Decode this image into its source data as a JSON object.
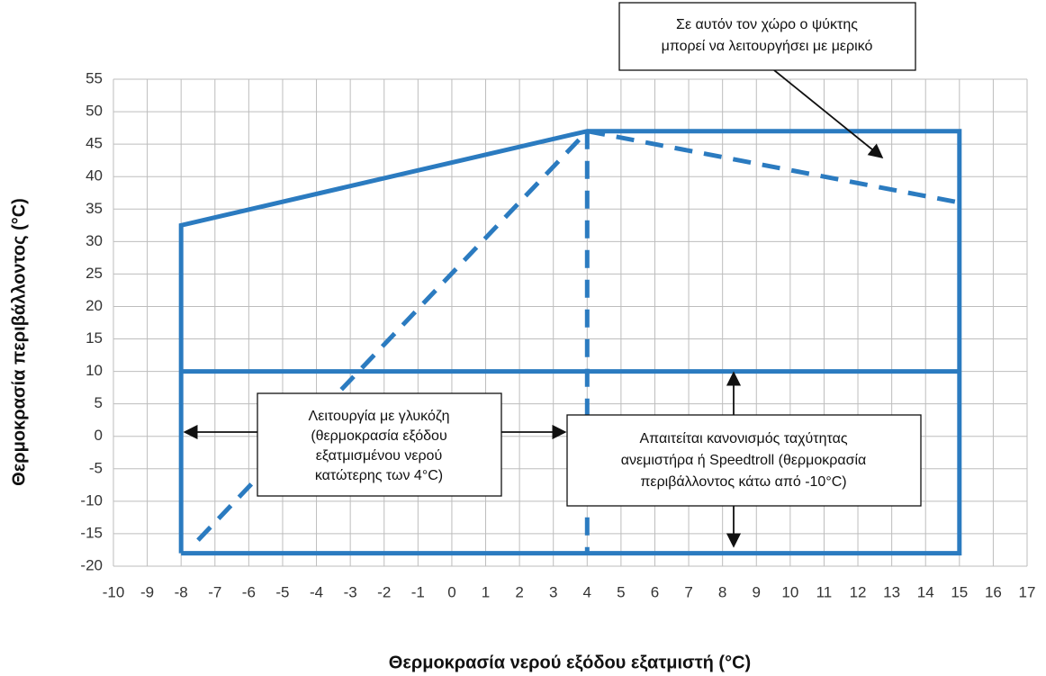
{
  "chart_data": {
    "type": "line",
    "xlabel": "Θερμοκρασία νερού εξόδου εξατμιστή (°C)",
    "ylabel": "Θερμοκρασία περιβάλλοντος (°C)",
    "xlim": [
      -10,
      17
    ],
    "xticks": [
      -10,
      -9,
      -8,
      -7,
      -6,
      -5,
      -4,
      -3,
      -2,
      -1,
      0,
      1,
      2,
      3,
      4,
      5,
      6,
      7,
      8,
      9,
      10,
      11,
      12,
      13,
      14,
      15,
      16,
      17
    ],
    "ylim": [
      -20,
      55
    ],
    "yticks": [
      -20,
      -15,
      -10,
      -5,
      0,
      5,
      10,
      15,
      20,
      25,
      30,
      35,
      40,
      45,
      50,
      55
    ],
    "grid": true,
    "series": [
      {
        "color": "#2b7bc0",
        "dashed": false,
        "x": [
          -8,
          -8,
          4,
          15,
          15,
          -8
        ],
        "values": [
          -18,
          32.5,
          47,
          47,
          -18,
          -18
        ]
      },
      {
        "color": "#2b7bc0",
        "dashed": false,
        "x": [
          -8,
          15
        ],
        "values": [
          10,
          10
        ]
      },
      {
        "color": "#2b7bc0",
        "dashed": true,
        "x": [
          -7.5,
          4
        ],
        "values": [
          -16,
          47
        ]
      },
      {
        "color": "#2b7bc0",
        "dashed": true,
        "x": [
          4,
          4
        ],
        "values": [
          47,
          -18
        ]
      },
      {
        "color": "#2b7bc0",
        "dashed": true,
        "x": [
          4,
          15
        ],
        "values": [
          47,
          36
        ]
      }
    ],
    "annotations": [
      {
        "lines": [
          "Σε αυτόν τον χώρο ο ψύκτης",
          "μπορεί να λειτουργήσει με μερικό"
        ]
      },
      {
        "lines": [
          "Λειτουργία με γλυκόζη",
          "(θερμοκρασία εξόδου",
          "εξατμισμένου νερού",
          "κατώτερης των 4°C)"
        ]
      },
      {
        "lines": [
          "Απαιτείται κανονισμός ταχύτητας",
          "ανεμιστήρα ή Speedtroll (θερμοκρασία",
          "περιβάλλοντος κάτω από -10°C)"
        ]
      }
    ]
  }
}
